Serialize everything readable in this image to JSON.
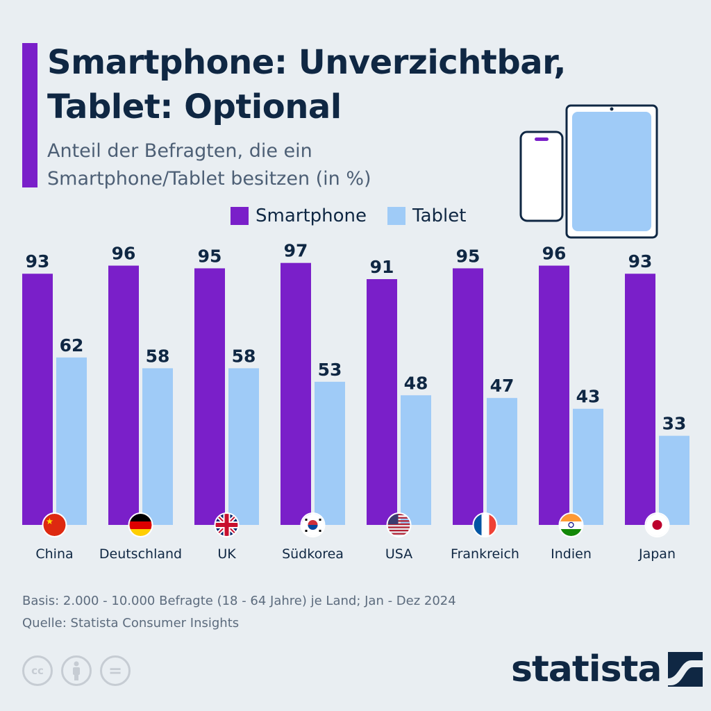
{
  "header": {
    "title_line1": "Smartphone: Unverzichtbar,",
    "title_line2": "Tablet: Optional",
    "subtitle_line1": "Anteil der Befragten, die ein",
    "subtitle_line2": "Smartphone/Tablet besitzen (in %)"
  },
  "colors": {
    "smartphone": "#7a1fc9",
    "tablet": "#9fcbf7",
    "text": "#0f2743",
    "background": "#e9eef2"
  },
  "chart_data": {
    "type": "bar",
    "categories": [
      "China",
      "Deutschland",
      "UK",
      "Südkorea",
      "USA",
      "Frankreich",
      "Indien",
      "Japan"
    ],
    "series": [
      {
        "name": "Smartphone",
        "values": [
          93,
          96,
          95,
          97,
          91,
          95,
          96,
          93
        ]
      },
      {
        "name": "Tablet",
        "values": [
          62,
          58,
          58,
          53,
          48,
          47,
          43,
          33
        ]
      }
    ],
    "flags": [
      "china-flag-icon",
      "germany-flag-icon",
      "uk-flag-icon",
      "south-korea-flag-icon",
      "usa-flag-icon",
      "france-flag-icon",
      "india-flag-icon",
      "japan-flag-icon"
    ],
    "ylim": [
      0,
      100
    ],
    "legend_position": "top-right",
    "grid": false
  },
  "footer": {
    "basis": "Basis: 2.000 - 10.000 Befragte (18 - 64 Jahre) je Land; Jan - Dez 2024",
    "source": "Quelle: Statista Consumer Insights",
    "cc_label": "cc",
    "equals_label": "=",
    "brand": "statista"
  }
}
